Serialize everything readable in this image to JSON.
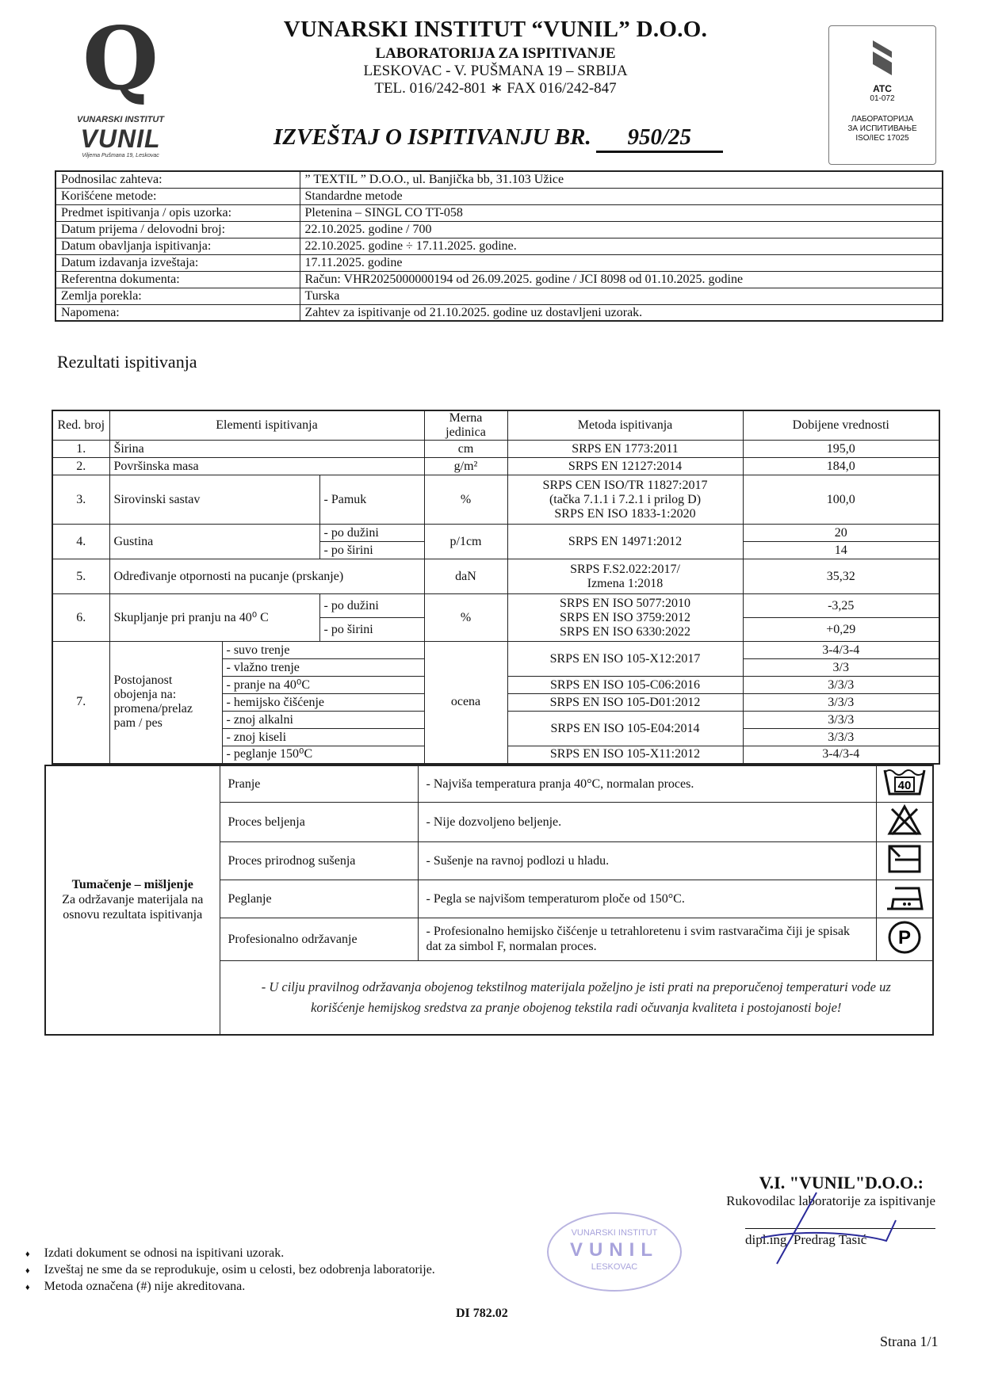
{
  "logo": {
    "letter": "Q",
    "inner": "Vunil",
    "institute": "VUNARSKI INSTITUT",
    "brand": "VUNIL",
    "address": "Viljema Pušmana 19, Leskovac"
  },
  "header": {
    "title": "VUNARSKI INSTITUT “VUNIL” D.O.O.",
    "lab": "LABORATORIJA ZA ISPITIVANJE",
    "address": "LESKOVAC - V. PUŠMANA 19 – SRBIJA",
    "phone": "TEL. 016/242-801 ∗ FAX 016/242-847"
  },
  "report": {
    "label": "IZVEŠTAJ O ISPITIVANJU BR.",
    "number": "950/25"
  },
  "accreditation": {
    "mark": "ATC",
    "code": "01-072",
    "line1": "ЛАБОРАТОРИЈА",
    "line2": "ЗА ИСПИТИВАЊЕ",
    "line3": "ISO/IEC 17025"
  },
  "info": [
    {
      "label": "Podnosilac zahteva:",
      "value": "” TEXTIL ” D.O.O., ul. Banjička bb, 31.103 Užice"
    },
    {
      "label": "Korišćene metode:",
      "value": "Standardne metode"
    },
    {
      "label": "Predmet ispitivanja / opis uzorka:",
      "value": "Pletenina – SINGL CO TT-058"
    },
    {
      "label": "Datum prijema / delovodni broj:",
      "value": "22.10.2025.  godine   /    700"
    },
    {
      "label": "Datum obavljanja ispitivanja:",
      "value": "22.10.2025.  godine ÷ 17.11.2025.  godine."
    },
    {
      "label": "Datum izdavanja izveštaja:",
      "value": "17.11.2025.  godine"
    },
    {
      "label": "Referentna dokumenta:",
      "value": "Račun: VHR2025000000194 od 26.09.2025. godine  /  JCI 8098 od 01.10.2025. godine"
    },
    {
      "label": "Zemlja porekla:",
      "value": "Turska"
    },
    {
      "label": "Napomena:",
      "value": "Zahtev za ispitivanje od 21.10.2025. godine uz dostavljeni uzorak."
    }
  ],
  "results_title": "Rezultati ispitivanja",
  "results": {
    "headers": {
      "no": "Red. broj",
      "element": "Elementi ispitivanja",
      "unit": "Merna jedinica",
      "method": "Metoda ispitivanja",
      "value": "Dobijene vrednosti"
    },
    "r1": {
      "no": "1.",
      "element": "Širina",
      "unit": "cm",
      "method": "SRPS EN 1773:2011",
      "value": "195,0"
    },
    "r2": {
      "no": "2.",
      "element": "Površinska masa",
      "unit": "g/m²",
      "method": "SRPS EN 12127:2014",
      "value": "184,0"
    },
    "r3": {
      "no": "3.",
      "element": "Sirovinski sastav",
      "sub": "- Pamuk",
      "unit": "%",
      "method1": "SRPS CEN ISO/TR 11827:2017",
      "method2": "(tačka 7.1.1 i 7.2.1 i prilog D)",
      "method3": "SRPS EN ISO 1833-1:2020",
      "value": "100,0"
    },
    "r4": {
      "no": "4.",
      "element": "Gustina",
      "sub1": "- po dužini",
      "sub2": "- po širini",
      "unit": "p/1cm",
      "method": "SRPS EN 14971:2012",
      "value1": "20",
      "value2": "14"
    },
    "r5": {
      "no": "5.",
      "element": "Određivanje otpornosti na pucanje (prskanje)",
      "unit": "daN",
      "method1": "SRPS F.S2.022:2017/",
      "method2": "Izmena 1:2018",
      "value": "35,32"
    },
    "r6": {
      "no": "6.",
      "element": "Skupljanje pri pranju na 40⁰ C",
      "sub1": "- po dužini",
      "sub2": "- po širini",
      "unit": "%",
      "method1": "SRPS EN ISO 5077:2010",
      "method2": "SRPS EN ISO 3759:2012",
      "method3": "SRPS EN ISO 6330:2022",
      "value1": "-3,25",
      "value2": "+0,29"
    },
    "r7": {
      "no": "7.",
      "element": "Postojanost obojenja na: promena/prelaz pam / pes",
      "unit": "ocena",
      "subs": [
        "- suvo trenje",
        "- vlažno trenje",
        "- pranje na 40⁰C",
        "- hemijsko čišćenje",
        "- znoj alkalni",
        "- znoj kiseli",
        "- peglanje 150⁰C"
      ],
      "methods": [
        "SRPS EN ISO 105-X12:2017",
        "SRPS EN ISO 105-C06:2016",
        "SRPS EN ISO 105-D01:2012",
        "SRPS EN ISO 105-E04:2014",
        "SRPS EN ISO 105-X11:2012"
      ],
      "values": [
        "3-4/3-4",
        "3/3",
        "3/3/3",
        "3/3/3",
        "3/3/3",
        "3/3/3",
        "3-4/3-4"
      ]
    }
  },
  "care": {
    "heading": "Tumačenje – mišljenje",
    "subheading": "Za održavanje materijala na osnovu rezultata ispitivanja",
    "rows": [
      {
        "label": "Pranje",
        "text": "-  Najviša temperatura pranja 40°C, normalan proces.",
        "icon": "wash-40-icon",
        "icon_text": "40"
      },
      {
        "label": "Proces beljenja",
        "text": "- Nije dozvoljeno beljenje.",
        "icon": "no-bleach-icon"
      },
      {
        "label": "Proces prirodnog sušenja",
        "text": "-  Sušenje na ravnoj podlozi u hladu.",
        "icon": "dry-flat-shade-icon"
      },
      {
        "label": "Peglanje",
        "text": "-  Pegla se najvišom temperaturom ploče od 150°C.",
        "icon": "iron-two-dots-icon"
      },
      {
        "label": "Profesionalno održavanje",
        "text": "-  Profesionalno hemijsko čišćenje u tetrahloretenu i svim rastvaračima čiji je spisak dat za simbol F, normalan proces.",
        "icon": "dry-clean-p-icon",
        "icon_text": "P"
      }
    ],
    "note": "- U cilju pravilnog održavanja obojenog tekstilnog materijala poželjno je isti prati na preporučenoj temperaturi vode uz korišćenje hemijskog sredstva za pranje obojenog tekstila radi očuvanja kvaliteta i postojanosti boje!"
  },
  "signature": {
    "company": "V.I. \"VUNIL\"D.O.O.:",
    "role": "Rukovodilac laboratorije za ispitivanje",
    "name": "dipl.ing. Predrag Tasić"
  },
  "stamp": {
    "ring": "VUNARSKI INSTITUT",
    "center": "VUNIL",
    "bottom": "LESKOVAC",
    "color": "#a8a3dc"
  },
  "notes": [
    "Izdati dokument se odnosi na ispitivani uzorak.",
    "Izveštaj ne sme da se reprodukuje, osim u celosti, bez odobrenja laboratorije.",
    "Metoda označena (#) nije akreditovana."
  ],
  "doc_code": "DI 782.02",
  "page": "Strana 1/1"
}
